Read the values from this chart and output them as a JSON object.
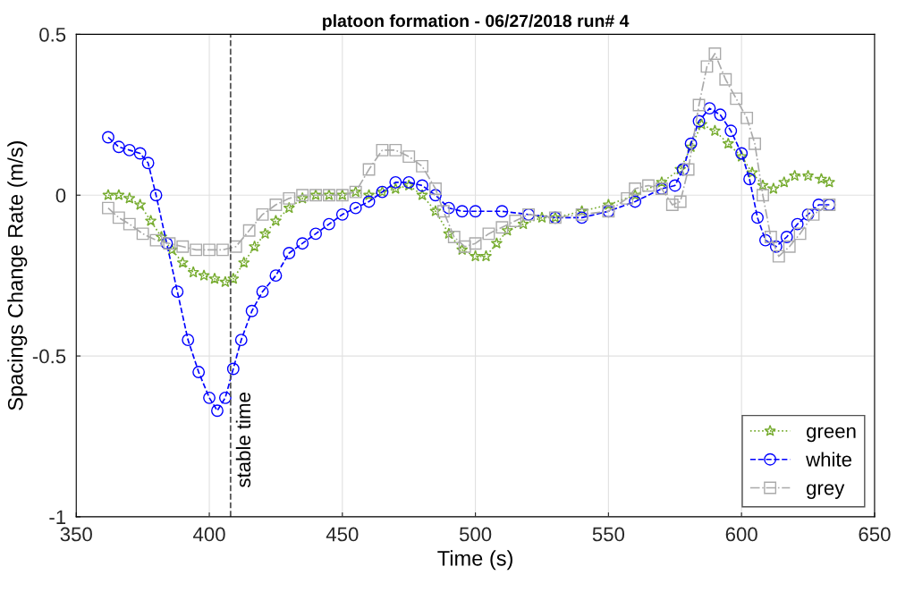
{
  "chart_data": {
    "type": "line",
    "title": "platoon formation - 06/27/2018 run# 4",
    "xlabel": "Time (s)",
    "ylabel": "Spacings Change Rate (m/s)",
    "xlim": [
      350,
      650
    ],
    "xticks": [
      350,
      400,
      450,
      500,
      550,
      600,
      650
    ],
    "ylim": [
      -1,
      0.5
    ],
    "yticks": [
      -1,
      -0.5,
      0,
      0.5
    ],
    "grid": true,
    "legend": "bottom right",
    "ref_lines": [
      {
        "axis": "x",
        "value": 408,
        "label": "stable time",
        "color": "#555555",
        "line_style": "dashed"
      }
    ],
    "series": [
      {
        "name": "green",
        "color": "#77ac30",
        "marker": "star",
        "line_style": "dotted",
        "x": [
          362,
          366,
          370,
          374,
          378,
          382,
          386,
          390,
          394,
          398,
          402,
          406,
          409,
          413,
          417,
          421,
          425,
          430,
          435,
          440,
          445,
          450,
          455,
          460,
          465,
          470,
          475,
          480,
          485,
          490,
          495,
          500,
          504,
          508,
          512,
          518,
          525,
          530,
          540,
          550,
          560,
          570,
          577,
          581,
          585,
          590,
          595,
          600,
          604,
          608,
          612,
          616,
          620,
          625,
          630,
          633
        ],
        "values": [
          0.0,
          0.0,
          -0.01,
          -0.03,
          -0.08,
          -0.13,
          -0.17,
          -0.21,
          -0.24,
          -0.25,
          -0.26,
          -0.27,
          -0.26,
          -0.21,
          -0.16,
          -0.12,
          -0.08,
          -0.04,
          -0.01,
          0.0,
          0.0,
          0.0,
          0.01,
          0.0,
          0.01,
          0.02,
          0.03,
          0.0,
          -0.05,
          -0.12,
          -0.17,
          -0.19,
          -0.19,
          -0.15,
          -0.11,
          -0.09,
          -0.07,
          -0.07,
          -0.05,
          -0.03,
          0.0,
          0.04,
          0.08,
          0.15,
          0.22,
          0.2,
          0.16,
          0.12,
          0.07,
          0.03,
          0.02,
          0.04,
          0.06,
          0.06,
          0.05,
          0.04
        ]
      },
      {
        "name": "white",
        "color": "#0000ff",
        "marker": "circle",
        "line_style": "dashed",
        "x": [
          362,
          366,
          370,
          374,
          377,
          380,
          384,
          388,
          392,
          396,
          400,
          403,
          406,
          409,
          412,
          416,
          420,
          425,
          430,
          435,
          440,
          445,
          450,
          455,
          460,
          465,
          470,
          475,
          480,
          485,
          490,
          495,
          500,
          510,
          520,
          530,
          540,
          550,
          560,
          570,
          575,
          578,
          581,
          584,
          588,
          592,
          596,
          600,
          603,
          606,
          609,
          613,
          617,
          621,
          625,
          629,
          633
        ],
        "values": [
          0.18,
          0.15,
          0.14,
          0.13,
          0.1,
          0.0,
          -0.15,
          -0.3,
          -0.45,
          -0.55,
          -0.63,
          -0.67,
          -0.63,
          -0.54,
          -0.45,
          -0.36,
          -0.3,
          -0.25,
          -0.18,
          -0.15,
          -0.12,
          -0.09,
          -0.06,
          -0.04,
          -0.02,
          0.01,
          0.04,
          0.04,
          0.03,
          0.0,
          -0.04,
          -0.05,
          -0.05,
          -0.05,
          -0.06,
          -0.07,
          -0.07,
          -0.05,
          -0.02,
          0.02,
          0.03,
          0.08,
          0.16,
          0.23,
          0.27,
          0.25,
          0.2,
          0.13,
          0.05,
          -0.07,
          -0.14,
          -0.16,
          -0.13,
          -0.09,
          -0.06,
          -0.03,
          -0.03
        ]
      },
      {
        "name": "grey",
        "color": "#aaaaaa",
        "marker": "square",
        "line_style": "dashdot",
        "x": [
          362,
          366,
          370,
          375,
          380,
          385,
          390,
          395,
          400,
          405,
          410,
          415,
          420,
          425,
          430,
          435,
          440,
          445,
          450,
          455,
          460,
          465,
          470,
          475,
          480,
          485,
          488,
          492,
          496,
          500,
          505,
          510,
          515,
          520,
          530,
          540,
          550,
          557,
          560,
          565,
          570,
          574,
          577,
          580,
          584,
          587,
          590,
          594,
          598,
          602,
          605,
          608,
          611,
          614,
          618,
          622,
          627,
          633
        ],
        "values": [
          -0.04,
          -0.07,
          -0.09,
          -0.12,
          -0.14,
          -0.15,
          -0.16,
          -0.17,
          -0.17,
          -0.17,
          -0.16,
          -0.11,
          -0.06,
          -0.03,
          -0.01,
          0.0,
          0.0,
          0.0,
          0.0,
          0.01,
          0.08,
          0.14,
          0.14,
          0.12,
          0.09,
          0.02,
          -0.05,
          -0.13,
          -0.16,
          -0.15,
          -0.12,
          -0.1,
          -0.08,
          -0.06,
          -0.07,
          -0.06,
          -0.05,
          -0.01,
          0.02,
          0.03,
          0.02,
          -0.03,
          -0.02,
          0.08,
          0.28,
          0.4,
          0.44,
          0.36,
          0.3,
          0.24,
          0.16,
          0.0,
          -0.13,
          -0.19,
          -0.16,
          -0.12,
          -0.06,
          -0.03
        ]
      }
    ]
  }
}
